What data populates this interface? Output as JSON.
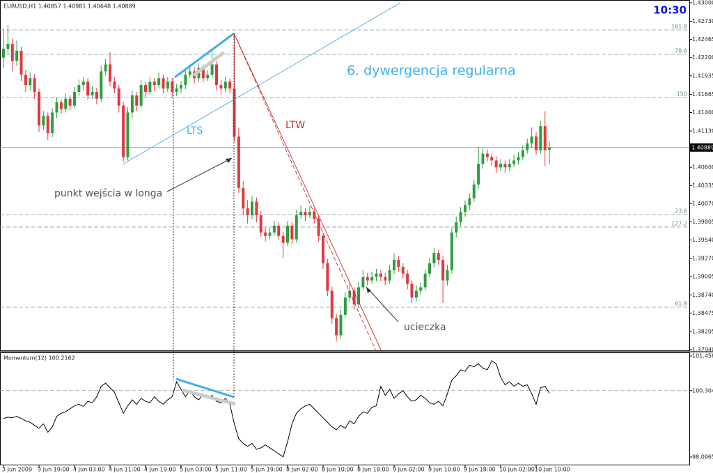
{
  "chart_data": [
    {
      "type": "candlestick",
      "title": "EURUSD,H1  1.40857 1.40981 1.40648 1.40889",
      "clock": "10:30",
      "up_color": "#2e9e3e",
      "down_color": "#e0393e",
      "ohlc": [
        [
          1.422,
          1.4262,
          1.4205,
          1.4233
        ],
        [
          1.4233,
          1.4268,
          1.4225,
          1.424
        ],
        [
          1.424,
          1.4248,
          1.42,
          1.4215
        ],
        [
          1.4215,
          1.4245,
          1.4208,
          1.423
        ],
        [
          1.423,
          1.4236,
          1.4186,
          1.4195
        ],
        [
          1.4195,
          1.4202,
          1.417,
          1.418
        ],
        [
          1.418,
          1.4198,
          1.4172,
          1.419
        ],
        [
          1.419,
          1.4196,
          1.416,
          1.417
        ],
        [
          1.417,
          1.4175,
          1.4112,
          1.4121
        ],
        [
          1.4121,
          1.4142,
          1.4115,
          1.4135
        ],
        [
          1.4135,
          1.414,
          1.41,
          1.411
        ],
        [
          1.411,
          1.4146,
          1.4104,
          1.414
        ],
        [
          1.414,
          1.4162,
          1.4132,
          1.4155
        ],
        [
          1.4155,
          1.416,
          1.4138,
          1.4145
        ],
        [
          1.4145,
          1.4168,
          1.414,
          1.416
        ],
        [
          1.416,
          1.4165,
          1.4143,
          1.415
        ],
        [
          1.415,
          1.4177,
          1.4146,
          1.417
        ],
        [
          1.417,
          1.4188,
          1.4164,
          1.418
        ],
        [
          1.418,
          1.4192,
          1.4172,
          1.4185
        ],
        [
          1.4185,
          1.419,
          1.4158,
          1.4165
        ],
        [
          1.4165,
          1.4178,
          1.416,
          1.417
        ],
        [
          1.417,
          1.4176,
          1.4152,
          1.416
        ],
        [
          1.416,
          1.4208,
          1.4155,
          1.42
        ],
        [
          1.42,
          1.4218,
          1.4194,
          1.421
        ],
        [
          1.421,
          1.4228,
          1.4178,
          1.4185
        ],
        [
          1.4185,
          1.4192,
          1.4168,
          1.4175
        ],
        [
          1.4175,
          1.418,
          1.414,
          1.415
        ],
        [
          1.415,
          1.4155,
          1.4068,
          1.4075
        ],
        [
          1.4075,
          1.4148,
          1.407,
          1.414
        ],
        [
          1.414,
          1.4172,
          1.4132,
          1.4165
        ],
        [
          1.4165,
          1.417,
          1.4142,
          1.415
        ],
        [
          1.415,
          1.4188,
          1.4146,
          1.418
        ],
        [
          1.418,
          1.4185,
          1.4162,
          1.417
        ],
        [
          1.417,
          1.4192,
          1.4165,
          1.4185
        ],
        [
          1.4185,
          1.419,
          1.4172,
          1.418
        ],
        [
          1.418,
          1.4198,
          1.4175,
          1.419
        ],
        [
          1.419,
          1.4195,
          1.4168,
          1.4175
        ],
        [
          1.4175,
          1.4192,
          1.417,
          1.4185
        ],
        [
          1.4185,
          1.419,
          1.4162,
          1.417
        ],
        [
          1.417,
          1.4182,
          1.4164,
          1.4175
        ],
        [
          1.4175,
          1.4186,
          1.4168,
          1.418
        ],
        [
          1.418,
          1.4202,
          1.4174,
          1.4195
        ],
        [
          1.4195,
          1.421,
          1.419,
          1.42
        ],
        [
          1.42,
          1.4206,
          1.4182,
          1.419
        ],
        [
          1.419,
          1.4212,
          1.4185,
          1.4205
        ],
        [
          1.4205,
          1.421,
          1.4184,
          1.419
        ],
        [
          1.419,
          1.4202,
          1.4186,
          1.4195
        ],
        [
          1.4195,
          1.423,
          1.419,
          1.421
        ],
        [
          1.421,
          1.4215,
          1.4172,
          1.418
        ],
        [
          1.418,
          1.4188,
          1.4166,
          1.4175
        ],
        [
          1.4175,
          1.4192,
          1.417,
          1.4185
        ],
        [
          1.4185,
          1.419,
          1.4168,
          1.4175
        ],
        [
          1.4175,
          1.4255,
          1.4098,
          1.4105
        ],
        [
          1.4105,
          1.4118,
          1.4022,
          1.403
        ],
        [
          1.403,
          1.404,
          1.399,
          1.4
        ],
        [
          1.4,
          1.4012,
          1.3978,
          1.399
        ],
        [
          1.399,
          1.4018,
          1.3984,
          1.401
        ],
        [
          1.401,
          1.4016,
          1.398,
          1.399
        ],
        [
          1.399,
          1.3996,
          1.3959,
          1.3965
        ],
        [
          1.3965,
          1.3972,
          1.3952,
          1.396
        ],
        [
          1.396,
          1.3972,
          1.3955,
          1.3965
        ],
        [
          1.3965,
          1.3982,
          1.396,
          1.3975
        ],
        [
          1.3975,
          1.398,
          1.3954,
          1.396
        ],
        [
          1.396,
          1.3966,
          1.3928,
          1.395
        ],
        [
          1.395,
          1.3982,
          1.3945,
          1.3975
        ],
        [
          1.3975,
          1.398,
          1.3948,
          1.3955
        ],
        [
          1.3955,
          1.3998,
          1.395,
          1.399
        ],
        [
          1.399,
          1.4005,
          1.3985,
          1.3995
        ],
        [
          1.3995,
          1.4,
          1.3982,
          1.399
        ],
        [
          1.399,
          1.4003,
          1.3986,
          1.3995
        ],
        [
          1.3995,
          1.4,
          1.3978,
          1.3985
        ],
        [
          1.3985,
          1.399,
          1.3952,
          1.396
        ],
        [
          1.396,
          1.3965,
          1.3912,
          1.392
        ],
        [
          1.392,
          1.3926,
          1.3872,
          1.388
        ],
        [
          1.388,
          1.3886,
          1.3832,
          1.384
        ],
        [
          1.384,
          1.3846,
          1.3806,
          1.3815
        ],
        [
          1.3815,
          1.3852,
          1.381,
          1.3845
        ],
        [
          1.3845,
          1.3878,
          1.384,
          1.387
        ],
        [
          1.387,
          1.389,
          1.3864,
          1.388
        ],
        [
          1.388,
          1.3885,
          1.3852,
          1.386
        ],
        [
          1.386,
          1.3893,
          1.3855,
          1.3885
        ],
        [
          1.3885,
          1.391,
          1.388,
          1.39
        ],
        [
          1.39,
          1.3906,
          1.3888,
          1.3895
        ],
        [
          1.3895,
          1.3908,
          1.389,
          1.39
        ],
        [
          1.39,
          1.3912,
          1.3894,
          1.3905
        ],
        [
          1.3905,
          1.391,
          1.3894,
          1.39
        ],
        [
          1.39,
          1.3906,
          1.3888,
          1.3895
        ],
        [
          1.3895,
          1.3918,
          1.389,
          1.391
        ],
        [
          1.391,
          1.3935,
          1.3904,
          1.3925
        ],
        [
          1.3925,
          1.393,
          1.3908,
          1.3915
        ],
        [
          1.3915,
          1.392,
          1.3898,
          1.3905
        ],
        [
          1.3905,
          1.391,
          1.3882,
          1.389
        ],
        [
          1.389,
          1.3895,
          1.3862,
          1.387
        ],
        [
          1.387,
          1.3888,
          1.3864,
          1.388
        ],
        [
          1.388,
          1.3892,
          1.3874,
          1.3885
        ],
        [
          1.3885,
          1.3912,
          1.388,
          1.3905
        ],
        [
          1.3905,
          1.3928,
          1.39,
          1.392
        ],
        [
          1.392,
          1.3942,
          1.3914,
          1.3935
        ],
        [
          1.3935,
          1.394,
          1.3918,
          1.3925
        ],
        [
          1.3925,
          1.393,
          1.3862,
          1.3895
        ],
        [
          1.3895,
          1.3918,
          1.3888,
          1.391
        ],
        [
          1.391,
          1.3972,
          1.3905,
          1.3965
        ],
        [
          1.3965,
          1.3988,
          1.3958,
          1.398
        ],
        [
          1.398,
          1.4002,
          1.3974,
          1.3995
        ],
        [
          1.3995,
          1.4012,
          1.3988,
          1.4005
        ],
        [
          1.4005,
          1.4022,
          1.3998,
          1.4015
        ],
        [
          1.4015,
          1.4042,
          1.401,
          1.4035
        ],
        [
          1.4035,
          1.409,
          1.4028,
          1.4065
        ],
        [
          1.4065,
          1.4088,
          1.4058,
          1.408
        ],
        [
          1.408,
          1.4086,
          1.4068,
          1.4075
        ],
        [
          1.4075,
          1.408,
          1.4062,
          1.407
        ],
        [
          1.407,
          1.4076,
          1.4052,
          1.406
        ],
        [
          1.406,
          1.4072,
          1.4055,
          1.4065
        ],
        [
          1.4065,
          1.407,
          1.4052,
          1.406
        ],
        [
          1.406,
          1.4072,
          1.4054,
          1.4065
        ],
        [
          1.4065,
          1.4078,
          1.406,
          1.407
        ],
        [
          1.407,
          1.4082,
          1.4064,
          1.4075
        ],
        [
          1.4075,
          1.4092,
          1.407,
          1.4085
        ],
        [
          1.4085,
          1.4102,
          1.408,
          1.4095
        ],
        [
          1.4095,
          1.4118,
          1.4088,
          1.4105
        ],
        [
          1.4105,
          1.4112,
          1.4078,
          1.4085
        ],
        [
          1.4085,
          1.4128,
          1.408,
          1.412
        ],
        [
          1.412,
          1.4142,
          1.4062,
          1.4085
        ],
        [
          1.40857,
          1.40981,
          1.40648,
          1.40889
        ]
      ],
      "xticks": [
        {
          "value": 0,
          "label": "3 Jun 2009"
        },
        {
          "value": 8,
          "label": "3 Jun 19:00"
        },
        {
          "value": 16,
          "label": "4 Jun 03:00"
        },
        {
          "value": 24,
          "label": "4 Jun 11:00"
        },
        {
          "value": 32,
          "label": "4 Jun 19:00"
        },
        {
          "value": 40,
          "label": "5 Jun 03:00"
        },
        {
          "value": 48,
          "label": "5 Jun 11:00"
        },
        {
          "value": 56,
          "label": "5 Jun 19:00"
        },
        {
          "value": 64,
          "label": "8 Jun 02:00"
        },
        {
          "value": 72,
          "label": "8 Jun 10:00"
        },
        {
          "value": 80,
          "label": "8 Jun 18:00"
        },
        {
          "value": 88,
          "label": "9 Jun 02:00"
        },
        {
          "value": 96,
          "label": "9 Jun 10:00"
        },
        {
          "value": 104,
          "label": "9 Jun 18:00"
        },
        {
          "value": 112,
          "label": "10 Jun 02:00"
        },
        {
          "value": 120,
          "label": "10 Jun 10:00"
        }
      ],
      "ylim": [
        1.3794,
        1.43
      ],
      "yticks": [
        {
          "value": 1.43,
          "label": "1.43000"
        },
        {
          "value": 1.4273,
          "label": "1.42730"
        },
        {
          "value": 1.42465,
          "label": "1.42465"
        },
        {
          "value": 1.422,
          "label": "1.42200"
        },
        {
          "value": 1.41935,
          "label": "1.41935"
        },
        {
          "value": 1.41665,
          "label": "1.41665"
        },
        {
          "value": 1.414,
          "label": "1.41400"
        },
        {
          "value": 1.4113,
          "label": "1.41130"
        },
        {
          "value": 1.406,
          "label": "1.40600"
        },
        {
          "value": 1.40335,
          "label": "1.40335"
        },
        {
          "value": 1.4007,
          "label": "1.40070"
        },
        {
          "value": 1.39805,
          "label": "1.39805"
        },
        {
          "value": 1.3954,
          "label": "1.39540"
        },
        {
          "value": 1.3927,
          "label": "1.39270"
        },
        {
          "value": 1.39005,
          "label": "1.39005"
        },
        {
          "value": 1.3874,
          "label": "1.38740"
        },
        {
          "value": 1.38475,
          "label": "1.38475"
        },
        {
          "value": 1.38205,
          "label": "1.38205"
        },
        {
          "value": 1.3794,
          "label": "1.37940"
        }
      ],
      "last_price": 1.40889,
      "levels": [
        {
          "value": 1.42604,
          "label": "161.8"
        },
        {
          "value": 1.42248,
          "label": "78.6"
        },
        {
          "value": 1.41618,
          "label": "150"
        },
        {
          "value": 1.39911,
          "label": "23.6"
        },
        {
          "value": 1.39729,
          "label": "127.2"
        },
        {
          "value": 1.3856,
          "label": "61.8"
        }
      ],
      "annotations": [
        "6. dywergencja regularna",
        "LTS",
        "LTW",
        "punkt wejścia w longa",
        "ucieczka"
      ]
    },
    {
      "type": "line",
      "title": "Momentum(12) 100.2162",
      "color": "#000000",
      "values": [
        99.38,
        99.42,
        99.4,
        99.45,
        99.38,
        99.3,
        99.25,
        99.15,
        99.05,
        99.2,
        98.92,
        99.1,
        99.45,
        99.55,
        99.6,
        99.7,
        99.8,
        99.85,
        99.78,
        99.95,
        99.9,
        100.1,
        100.45,
        100.55,
        100.4,
        100.25,
        99.9,
        99.55,
        99.8,
        100.0,
        99.85,
        100.05,
        99.95,
        99.9,
        100.1,
        99.95,
        99.85,
        100.0,
        100.1,
        100.6,
        100.35,
        100.1,
        100.3,
        100.1,
        100.0,
        100.2,
        100.05,
        100.15,
        99.95,
        99.9,
        100.05,
        99.85,
        99.2,
        98.7,
        98.55,
        98.45,
        98.55,
        98.35,
        98.4,
        98.5,
        98.4,
        98.3,
        98.2,
        98.1,
        98.6,
        99.2,
        99.55,
        99.7,
        99.8,
        99.85,
        99.7,
        99.55,
        99.4,
        99.25,
        99.1,
        99.0,
        99.15,
        99.05,
        99.3,
        99.2,
        99.45,
        99.6,
        99.55,
        99.75,
        99.8,
        100.45,
        100.15,
        100.35,
        100.05,
        100.2,
        100.3,
        100.1,
        99.95,
        100.0,
        100.15,
        100.05,
        99.9,
        99.85,
        99.95,
        99.8,
        100.2,
        100.65,
        100.8,
        101.0,
        100.95,
        101.15,
        101.1,
        101.2,
        101.05,
        101.0,
        101.3,
        101.2,
        100.75,
        100.5,
        100.6,
        100.45,
        100.55,
        100.45,
        100.5,
        100.2,
        99.85,
        100.4,
        100.45,
        100.2162
      ],
      "ylim": [
        97.8182,
        101.5516
      ],
      "yticks": [
        101.4588,
        100.3048,
        98.0965
      ]
    }
  ]
}
